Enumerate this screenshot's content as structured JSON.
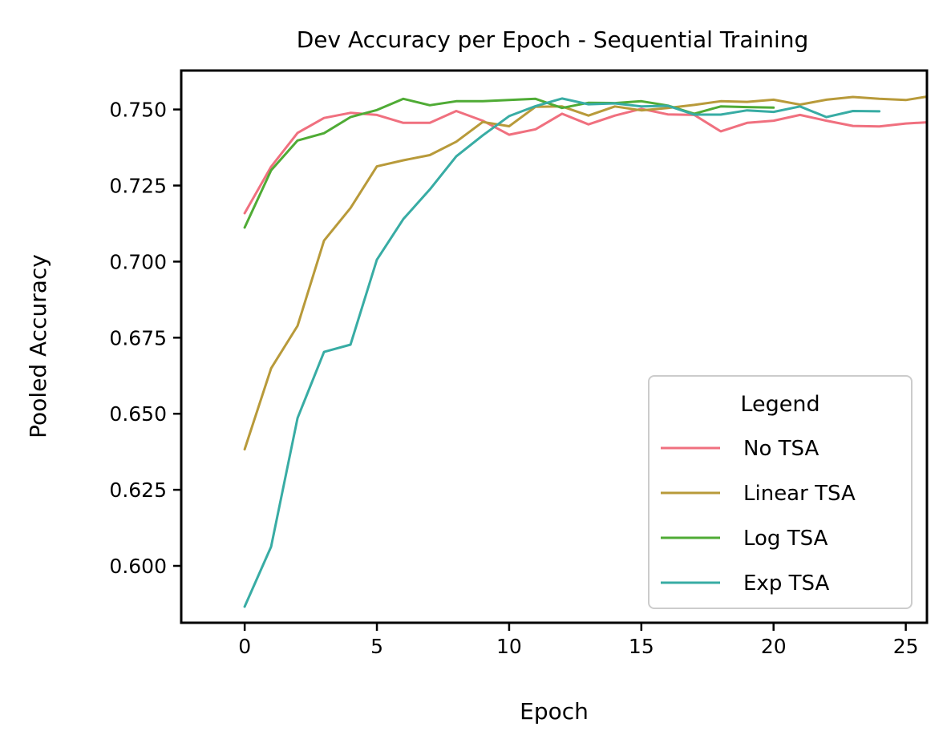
{
  "chart_data": {
    "type": "line",
    "title": "Dev Accuracy per Epoch - Sequential Training",
    "xlabel": "Epoch",
    "ylabel": "Pooled Accuracy",
    "xlim": [
      -2.4,
      25.8
    ],
    "ylim": [
      0.5813,
      0.7628
    ],
    "xticks": [
      0,
      5,
      10,
      15,
      20,
      25
    ],
    "yticks": [
      0.6,
      0.625,
      0.65,
      0.675,
      0.7,
      0.725,
      0.75
    ],
    "ytick_labels": [
      "0.600",
      "0.625",
      "0.650",
      "0.675",
      "0.700",
      "0.725",
      "0.750"
    ],
    "grid": false,
    "legend": {
      "title": "Legend",
      "placement": "lower-right"
    },
    "series": [
      {
        "name": "No TSA",
        "color": "#f0707f",
        "x": [
          0,
          1,
          2,
          3,
          4,
          5,
          6,
          7,
          8,
          9,
          10,
          11,
          12,
          13,
          14,
          15,
          16,
          17,
          18,
          19,
          20,
          21,
          22,
          23,
          24,
          25,
          26
        ],
        "values": [
          0.7159,
          0.7312,
          0.7423,
          0.7472,
          0.7489,
          0.7482,
          0.7456,
          0.7456,
          0.7495,
          0.7463,
          0.7417,
          0.7435,
          0.7486,
          0.7451,
          0.748,
          0.7502,
          0.7484,
          0.7482,
          0.7428,
          0.7456,
          0.7463,
          0.7482,
          0.7463,
          0.7446,
          0.7444,
          0.7454,
          0.7459
        ]
      },
      {
        "name": "Linear TSA",
        "color": "#b89a3a",
        "x": [
          0,
          1,
          2,
          3,
          4,
          5,
          6,
          7,
          8,
          9,
          10,
          11,
          12,
          13,
          14,
          15,
          16,
          17,
          18,
          19,
          20,
          21,
          22,
          23,
          24,
          25,
          26
        ],
        "values": [
          0.6383,
          0.6649,
          0.6789,
          0.7069,
          0.7176,
          0.7313,
          0.7333,
          0.735,
          0.7394,
          0.7459,
          0.7445,
          0.7509,
          0.751,
          0.748,
          0.751,
          0.7497,
          0.7505,
          0.7515,
          0.7527,
          0.7525,
          0.7532,
          0.7516,
          0.7532,
          0.7541,
          0.7535,
          0.7531,
          0.7545
        ]
      },
      {
        "name": "Log TSA",
        "color": "#4fab35",
        "x": [
          0,
          1,
          2,
          3,
          4,
          5,
          6,
          7,
          8,
          9,
          10,
          11,
          12,
          13,
          14,
          15,
          16,
          17,
          18,
          19,
          20
        ],
        "values": [
          0.7112,
          0.73,
          0.7398,
          0.7422,
          0.7475,
          0.7498,
          0.7535,
          0.7514,
          0.7527,
          0.7527,
          0.7531,
          0.7535,
          0.7505,
          0.7522,
          0.7521,
          0.7527,
          0.7513,
          0.7486,
          0.751,
          0.7508,
          0.7506
        ]
      },
      {
        "name": "Exp TSA",
        "color": "#38aca4",
        "x": [
          0,
          1,
          2,
          3,
          4,
          5,
          6,
          7,
          8,
          9,
          10,
          11,
          12,
          13,
          14,
          15,
          16,
          17,
          18,
          19,
          20,
          21,
          22,
          23,
          24
        ],
        "values": [
          0.5866,
          0.6063,
          0.6486,
          0.6703,
          0.6727,
          0.7006,
          0.714,
          0.7237,
          0.7346,
          0.7415,
          0.7478,
          0.7511,
          0.7536,
          0.7517,
          0.752,
          0.751,
          0.7512,
          0.7483,
          0.7483,
          0.7497,
          0.7492,
          0.751,
          0.7475,
          0.7495,
          0.7494
        ]
      }
    ]
  }
}
